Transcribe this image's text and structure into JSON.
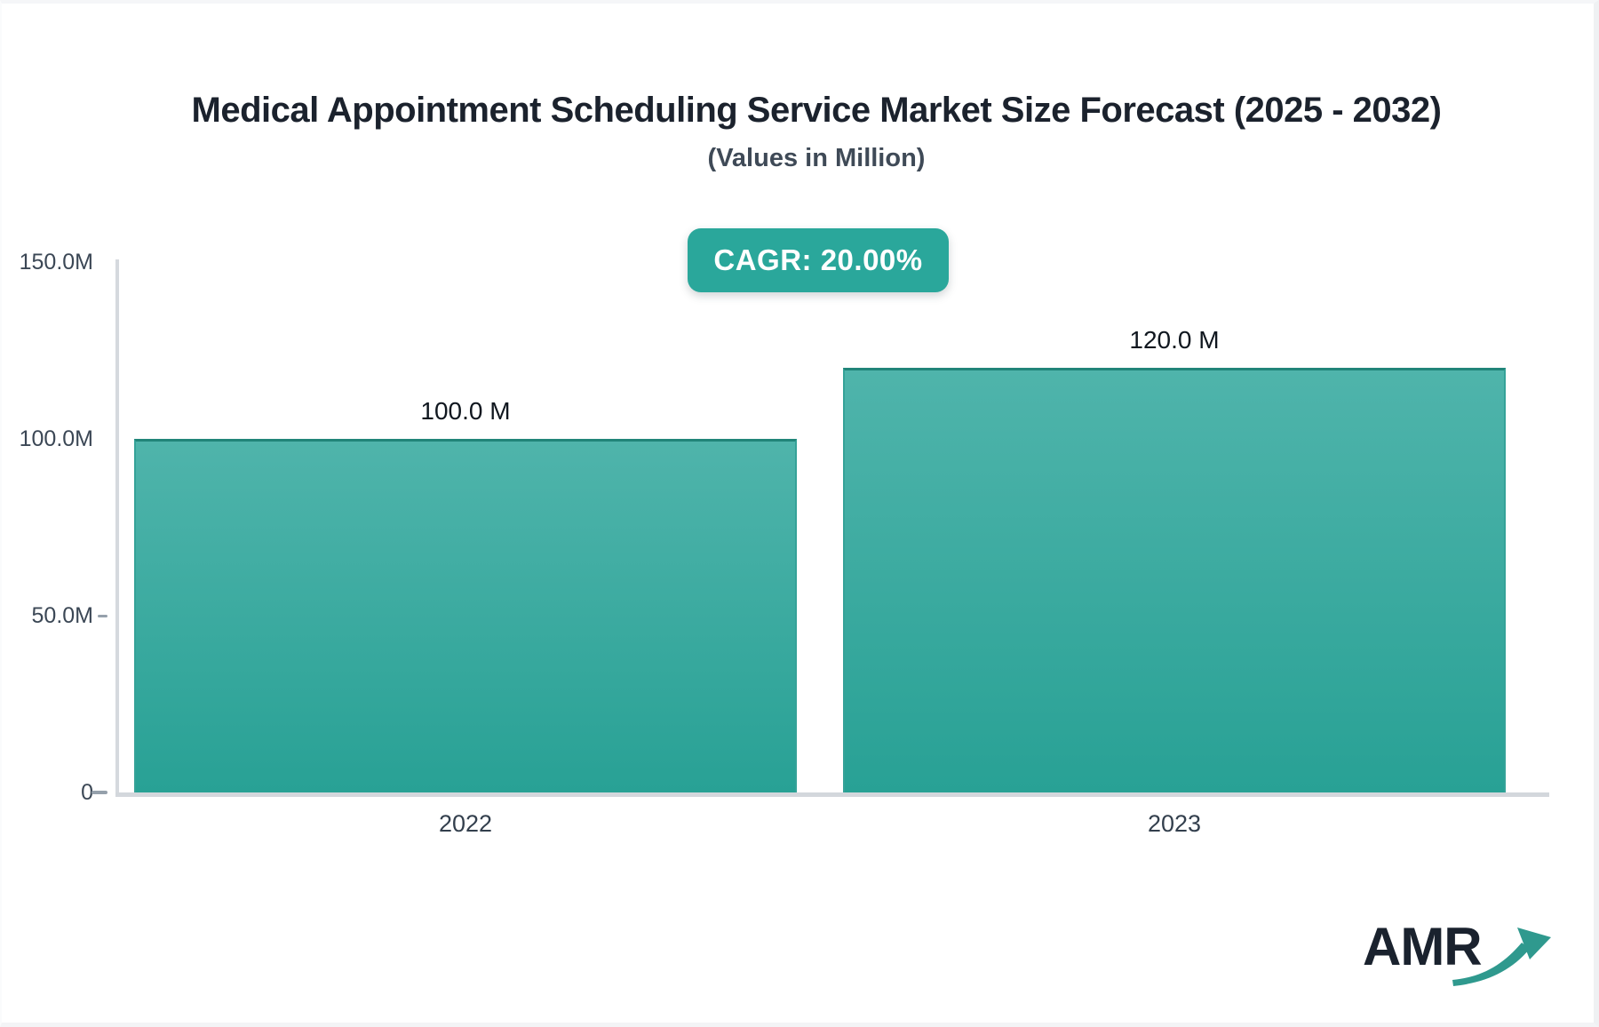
{
  "header": {
    "title": "Medical Appointment Scheduling Service Market Size Forecast (2025 - 2032)",
    "subtitle": "(Values in Million)"
  },
  "badge": {
    "label": "CAGR: 20.00%"
  },
  "logo": {
    "brand": "AMR",
    "arrow_icon": "trending-up-arrow"
  },
  "colors": {
    "accent_teal": "#2aa79b",
    "bar_gradient_top": "#4fb4ab",
    "bar_gradient_bottom": "#28a195",
    "bar_border_top": "#218579",
    "axis_gray": "#d5d9de",
    "title_text": "#1b222d",
    "subtitle_text": "#3f4a57",
    "axis_label_text": "#3b4755",
    "value_label_text": "#10171f",
    "badge_text": "#ffffff"
  },
  "chart_data": {
    "type": "bar",
    "categories": [
      "2022",
      "2023"
    ],
    "values": [
      100.0,
      120.0
    ],
    "value_labels": [
      "100.0 M",
      "120.0 M"
    ],
    "unit": "Million",
    "xlabel": "",
    "ylabel": "",
    "ylim": [
      0,
      150
    ],
    "y_ticks": [
      {
        "label": "150.0M",
        "value": 150,
        "has_dash": false
      },
      {
        "label": "100.0M",
        "value": 100,
        "has_dash": false
      },
      {
        "label": "50.0M",
        "value": 50,
        "has_dash": true
      },
      {
        "label": "0",
        "value": 0,
        "has_dash": true
      }
    ],
    "cagr": "20.00%",
    "legend": "none",
    "grid": "off",
    "title": "Medical Appointment Scheduling Service Market Size Forecast (2025 - 2032)",
    "subtitle": "(Values in Million)"
  }
}
